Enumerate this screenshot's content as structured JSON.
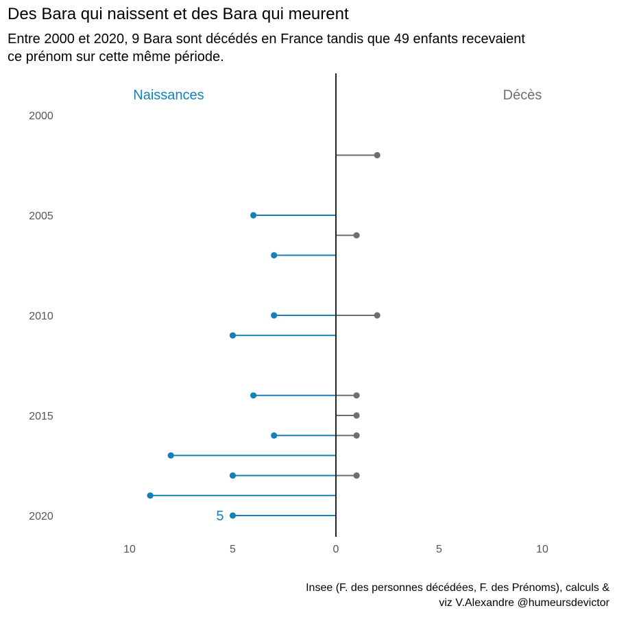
{
  "title": "Des Bara qui naissent et des Bara qui meurent",
  "subtitle": "Entre 2000 et 2020, 9 Bara sont décédés en France tandis que 49 enfants recevaient ce prénom sur cette même période.",
  "caption": {
    "line1": "Insee (F. des personnes décédées, F. des Prénoms), calculs &",
    "line2": "viz V.Alexandre @humeursdevictor"
  },
  "chart_data": {
    "type": "lollipop",
    "title": "Des Bara qui naissent et des Bara qui meurent",
    "series": [
      {
        "name": "Naissances",
        "color": "#1380b8",
        "side": "left",
        "points": [
          {
            "year": 2005,
            "value": 4
          },
          {
            "year": 2007,
            "value": 3
          },
          {
            "year": 2010,
            "value": 3
          },
          {
            "year": 2011,
            "value": 5
          },
          {
            "year": 2014,
            "value": 4
          },
          {
            "year": 2016,
            "value": 3
          },
          {
            "year": 2017,
            "value": 8
          },
          {
            "year": 2018,
            "value": 5
          },
          {
            "year": 2019,
            "value": 9
          },
          {
            "year": 2020,
            "value": 5
          }
        ]
      },
      {
        "name": "Décès",
        "color": "#6e6e6e",
        "side": "right",
        "points": [
          {
            "year": 2002,
            "value": 2
          },
          {
            "year": 2006,
            "value": 1
          },
          {
            "year": 2010,
            "value": 2
          },
          {
            "year": 2014,
            "value": 1
          },
          {
            "year": 2015,
            "value": 1
          },
          {
            "year": 2016,
            "value": 1
          },
          {
            "year": 2018,
            "value": 1
          }
        ]
      }
    ],
    "y_ticks": [
      "2000",
      "2005",
      "2010",
      "2015",
      "2020"
    ],
    "x_ticks": [
      {
        "value": -10,
        "label": "10"
      },
      {
        "value": -5,
        "label": "5"
      },
      {
        "value": 0,
        "label": "0"
      },
      {
        "value": 5,
        "label": "5"
      },
      {
        "value": 10,
        "label": "10"
      }
    ],
    "xlim": [
      -13.3,
      13.3
    ],
    "ylim": [
      1999,
      2021
    ],
    "annotation": {
      "year": 2020,
      "series": "Naissances",
      "text": "5"
    },
    "grid": false
  }
}
